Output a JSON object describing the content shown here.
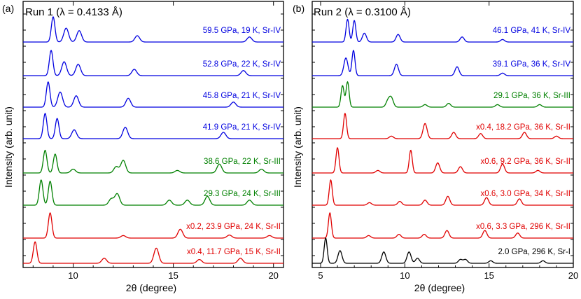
{
  "figure": {
    "colors": {
      "blue": "#0000e0",
      "green": "#008000",
      "red": "#e00000",
      "black": "#000000"
    }
  },
  "chart_data": [
    {
      "type": "line",
      "panel_label": "(a)",
      "title": "Run 1 (λ = 0.4133 Å)",
      "xlabel": "2θ (degree)",
      "ylabel": "Intensity (arb. unit)",
      "xlim": [
        7.5,
        20.5
      ],
      "xticks": [
        10,
        15,
        20
      ],
      "xtick_labels": [
        "10",
        "15",
        "20"
      ],
      "series": [
        {
          "label": "59.5 GPa, 19 K, Sr-IV",
          "color": "blue",
          "peaks": [
            [
              9.0,
              1.0
            ],
            [
              9.65,
              0.55
            ],
            [
              10.3,
              0.45
            ],
            [
              13.2,
              0.25
            ],
            [
              18.8,
              0.2
            ]
          ]
        },
        {
          "label": "52.8 GPa, 22 K, Sr-IV",
          "color": "blue",
          "peaks": [
            [
              8.9,
              1.0
            ],
            [
              9.55,
              0.55
            ],
            [
              10.25,
              0.45
            ],
            [
              13.05,
              0.25
            ],
            [
              18.5,
              0.2
            ]
          ]
        },
        {
          "label": "45.8 GPa, 21 K, Sr-IV",
          "color": "blue",
          "peaks": [
            [
              8.75,
              1.0
            ],
            [
              9.35,
              0.6
            ],
            [
              10.15,
              0.45
            ],
            [
              12.75,
              0.35
            ],
            [
              18.0,
              0.2
            ]
          ]
        },
        {
          "label": "41.9 GPa, 21 K, Sr-IV",
          "color": "blue",
          "peaks": [
            [
              8.6,
              1.0
            ],
            [
              9.2,
              0.8
            ],
            [
              10.05,
              0.35
            ],
            [
              12.6,
              0.45
            ],
            [
              17.5,
              0.25
            ]
          ]
        },
        {
          "label": "38.6 GPa, 22 K, Sr-III",
          "color": "green",
          "peaks": [
            [
              8.6,
              0.9
            ],
            [
              9.1,
              0.75
            ],
            [
              10.0,
              0.15
            ],
            [
              12.5,
              0.5
            ],
            [
              12.15,
              0.25
            ],
            [
              15.2,
              0.1
            ],
            [
              17.3,
              0.35
            ],
            [
              19.4,
              0.15
            ]
          ]
        },
        {
          "label": "29.3 GPa, 24 K, Sr-III",
          "color": "green",
          "peaks": [
            [
              8.4,
              1.0
            ],
            [
              8.85,
              0.95
            ],
            [
              11.9,
              0.25
            ],
            [
              12.2,
              0.45
            ],
            [
              14.8,
              0.2
            ],
            [
              15.7,
              0.2
            ],
            [
              16.7,
              0.35
            ],
            [
              18.8,
              0.2
            ]
          ]
        },
        {
          "label": "x0.2, 23.9 GPa, 24 K, Sr-II",
          "color": "red",
          "peaks": [
            [
              8.85,
              1.0
            ],
            [
              12.5,
              0.1
            ],
            [
              15.35,
              0.35
            ],
            [
              17.8,
              0.12
            ],
            [
              19.8,
              0.1
            ]
          ]
        },
        {
          "label": "x0.4, 11.7 GPa, 15 K, Sr-II",
          "color": "red",
          "peaks": [
            [
              8.1,
              0.85
            ],
            [
              11.55,
              0.2
            ],
            [
              14.15,
              0.6
            ],
            [
              16.3,
              0.15
            ],
            [
              18.35,
              0.2
            ]
          ]
        }
      ]
    },
    {
      "type": "line",
      "panel_label": "(b)",
      "title": "Run 2 (λ = 0.3100 Å)",
      "xlabel": "2θ (degree)",
      "ylabel": "Intensity (arb. unit)",
      "xlim": [
        4.5,
        20.0
      ],
      "xticks": [
        5,
        10,
        15,
        20
      ],
      "xtick_labels": [
        "5",
        "10",
        "15",
        "20"
      ],
      "series": [
        {
          "label": "46.1 GPa, 41 K, Sr-IV",
          "color": "blue",
          "peaks": [
            [
              6.6,
              0.9
            ],
            [
              7.0,
              0.85
            ],
            [
              7.6,
              0.35
            ],
            [
              9.6,
              0.3
            ],
            [
              13.4,
              0.2
            ],
            [
              15.8,
              0.1
            ]
          ]
        },
        {
          "label": "39.1 GPa, 36 K, Sr-IV",
          "color": "blue",
          "peaks": [
            [
              6.5,
              0.7
            ],
            [
              6.95,
              1.0
            ],
            [
              9.5,
              0.45
            ],
            [
              13.1,
              0.35
            ],
            [
              15.8,
              0.1
            ]
          ]
        },
        {
          "label": "29.1 GPa, 36 K, Sr-III",
          "color": "green",
          "peaks": [
            [
              6.3,
              0.85
            ],
            [
              6.6,
              1.0
            ],
            [
              9.0,
              0.25
            ],
            [
              9.2,
              0.35
            ],
            [
              11.2,
              0.1
            ],
            [
              12.6,
              0.15
            ],
            [
              15.5,
              0.1
            ],
            [
              18.0,
              0.1
            ]
          ]
        },
        {
          "label": "x0.4, 18.2 GPa, 36 K, Sr-II",
          "color": "red",
          "peaks": [
            [
              6.45,
              1.0
            ],
            [
              9.2,
              0.1
            ],
            [
              11.2,
              0.6
            ],
            [
              12.9,
              0.25
            ],
            [
              14.5,
              0.2
            ],
            [
              17.1,
              0.25
            ],
            [
              19.0,
              0.1
            ]
          ]
        },
        {
          "label": "x0.6, 9.2 GPa, 36 K, Sr-II",
          "color": "red",
          "peaks": [
            [
              6.0,
              1.0
            ],
            [
              8.4,
              0.1
            ],
            [
              10.35,
              0.9
            ],
            [
              11.95,
              0.4
            ],
            [
              13.3,
              0.25
            ],
            [
              15.8,
              0.35
            ],
            [
              17.9,
              0.1
            ]
          ]
        },
        {
          "label": "x0.6, 3.0 GPa, 34 K, Sr-II",
          "color": "red",
          "peaks": [
            [
              5.6,
              1.0
            ],
            [
              7.9,
              0.1
            ],
            [
              9.7,
              0.15
            ],
            [
              11.2,
              0.2
            ],
            [
              12.55,
              0.35
            ],
            [
              14.85,
              0.3
            ],
            [
              16.8,
              0.25
            ]
          ]
        },
        {
          "label": "x0.6, 3.3 GPa, 296 K, Sr-II",
          "color": "red",
          "peaks": [
            [
              5.55,
              1.0
            ],
            [
              7.85,
              0.1
            ],
            [
              9.65,
              0.15
            ],
            [
              11.15,
              0.15
            ],
            [
              12.5,
              0.3
            ],
            [
              14.75,
              0.3
            ],
            [
              16.7,
              0.2
            ]
          ]
        },
        {
          "label": "2.0 GPa, 296 K, Sr-I",
          "color": "black",
          "peaks": [
            [
              5.3,
              1.0
            ],
            [
              6.15,
              0.5
            ],
            [
              8.75,
              0.45
            ],
            [
              10.25,
              0.45
            ],
            [
              10.75,
              0.2
            ],
            [
              13.3,
              0.15
            ],
            [
              13.6,
              0.15
            ],
            [
              15.1,
              0.1
            ],
            [
              18.2,
              0.1
            ]
          ]
        }
      ]
    }
  ]
}
